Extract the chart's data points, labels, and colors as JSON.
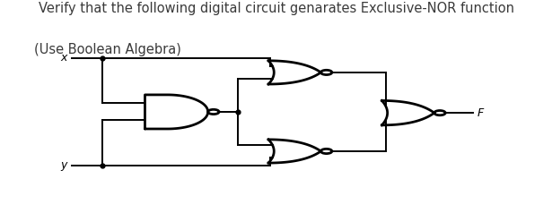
{
  "title_line1": "Verify that the following digital circuit genarates Exclusive-NOR function",
  "title_line2": "(Use Boolean Algebra)",
  "title_color": "#3a3a3a",
  "title_fontsize": 10.5,
  "bg_color": "#ffffff",
  "gate_lw": 2.0,
  "wire_lw": 1.4,
  "label_x": "x",
  "label_y": "y",
  "label_F": "F",
  "br": 0.011
}
